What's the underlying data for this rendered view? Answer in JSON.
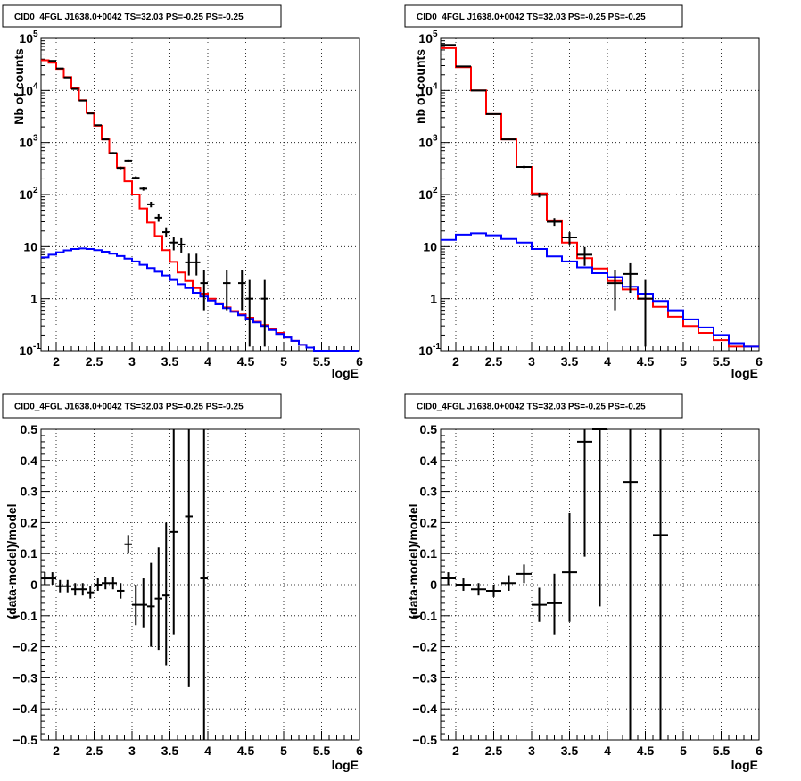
{
  "chart_data": [
    {
      "type": "step-histogram",
      "title": "CID0_4FGL J1638.0+0042 TS=32.03 PS=-0.25 PS=-0.25",
      "xlabel": "logE",
      "ylabel": "Nb of counts",
      "xlim": [
        1.8,
        6.0
      ],
      "ylim": [
        0.1,
        100000
      ],
      "yscale": "log",
      "grid": true,
      "xticks": [
        {
          "v": 2,
          "label": "2"
        },
        {
          "v": 2.5,
          "label": "2.5"
        },
        {
          "v": 3,
          "label": "3"
        },
        {
          "v": 3.5,
          "label": "3.5"
        },
        {
          "v": 4,
          "label": "4"
        },
        {
          "v": 4.5,
          "label": "4.5"
        },
        {
          "v": 5,
          "label": "5"
        },
        {
          "v": 5.5,
          "label": "5.5"
        },
        {
          "v": 6,
          "label": "6"
        }
      ],
      "yticks": [
        {
          "v": 0.1,
          "label": "10",
          "sup": "-1"
        },
        {
          "v": 1,
          "label": "1",
          "sup": ""
        },
        {
          "v": 10,
          "label": "10",
          "sup": ""
        },
        {
          "v": 100,
          "label": "10",
          "sup": "2"
        },
        {
          "v": 1000,
          "label": "10",
          "sup": "3"
        },
        {
          "v": 10000,
          "label": "10",
          "sup": "4"
        },
        {
          "v": 100000,
          "label": "10",
          "sup": "5"
        }
      ],
      "bin_edges": [
        1.8,
        1.9,
        2.0,
        2.1,
        2.2,
        2.3,
        2.4,
        2.5,
        2.6,
        2.7,
        2.8,
        2.9,
        3.0,
        3.1,
        3.2,
        3.3,
        3.4,
        3.5,
        3.6,
        3.7,
        3.8,
        3.9,
        4.0,
        4.1,
        4.2,
        4.3,
        4.4,
        4.5,
        4.6,
        4.7,
        4.8,
        4.9,
        5.0,
        5.1,
        5.2,
        5.3,
        5.4,
        5.5,
        5.6,
        5.7,
        5.8,
        5.9,
        6.0
      ],
      "series": [
        {
          "role": "total_model",
          "color": "#ff0000",
          "values": [
            38000,
            34000,
            26000,
            18000,
            11000,
            6500,
            3700,
            2100,
            1150,
            620,
            330,
            180,
            100,
            54,
            29,
            16,
            8.6,
            5.1,
            3.2,
            2.2,
            1.6,
            1.25,
            1.0,
            0.82,
            0.68,
            0.58,
            0.5,
            0.43,
            0.36,
            0.31,
            0.26,
            0.22,
            0.18,
            0.155,
            0.13,
            0.115,
            0.1,
            0.09,
            0.085,
            0.08,
            0.075,
            0.07
          ]
        },
        {
          "role": "source_model",
          "color": "#0000ff",
          "values": [
            6.2,
            7.0,
            7.8,
            8.5,
            9.0,
            9.2,
            9.0,
            8.6,
            8.0,
            7.3,
            6.6,
            5.9,
            5.2,
            4.5,
            3.9,
            3.3,
            2.8,
            2.3,
            1.9,
            1.6,
            1.3,
            1.1,
            0.92,
            0.78,
            0.66,
            0.56,
            0.48,
            0.41,
            0.35,
            0.3,
            0.25,
            0.21,
            0.18,
            0.155,
            0.13,
            0.115,
            0.1,
            0.09,
            0.085,
            0.08,
            0.075,
            0.07
          ]
        }
      ],
      "data_points": [
        {
          "x": 1.95,
          "y": 37000,
          "ylo": 36800,
          "yhi": 37200,
          "xerr": 0.05
        },
        {
          "x": 2.05,
          "y": 26500,
          "ylo": 26300,
          "yhi": 26700,
          "xerr": 0.05
        },
        {
          "x": 2.15,
          "y": 17800,
          "ylo": 17650,
          "yhi": 17950,
          "xerr": 0.05
        },
        {
          "x": 2.25,
          "y": 10700,
          "ylo": 10600,
          "yhi": 10800,
          "xerr": 0.05
        },
        {
          "x": 2.35,
          "y": 6400,
          "ylo": 6320,
          "yhi": 6480,
          "xerr": 0.05
        },
        {
          "x": 2.45,
          "y": 3600,
          "ylo": 3540,
          "yhi": 3660,
          "xerr": 0.05
        },
        {
          "x": 2.55,
          "y": 2150,
          "ylo": 2100,
          "yhi": 2200,
          "xerr": 0.05
        },
        {
          "x": 2.65,
          "y": 1150,
          "ylo": 1120,
          "yhi": 1180,
          "xerr": 0.05
        },
        {
          "x": 2.75,
          "y": 630,
          "ylo": 605,
          "yhi": 655,
          "xerr": 0.05
        },
        {
          "x": 2.85,
          "y": 325,
          "ylo": 307,
          "yhi": 343,
          "xerr": 0.05
        },
        {
          "x": 2.95,
          "y": 450,
          "ylo": 430,
          "yhi": 470,
          "xerr": 0.05
        },
        {
          "x": 3.05,
          "y": 210,
          "ylo": 196,
          "yhi": 224,
          "xerr": 0.05
        },
        {
          "x": 3.15,
          "y": 130,
          "ylo": 119,
          "yhi": 141,
          "xerr": 0.05
        },
        {
          "x": 3.25,
          "y": 65,
          "ylo": 57,
          "yhi": 73,
          "xerr": 0.05
        },
        {
          "x": 3.35,
          "y": 36,
          "ylo": 30,
          "yhi": 42,
          "xerr": 0.05
        },
        {
          "x": 3.45,
          "y": 19,
          "ylo": 15,
          "yhi": 23.5,
          "xerr": 0.05
        },
        {
          "x": 3.55,
          "y": 12,
          "ylo": 8.5,
          "yhi": 15.5,
          "xerr": 0.05
        },
        {
          "x": 3.65,
          "y": 11,
          "ylo": 7.7,
          "yhi": 14.5,
          "xerr": 0.05
        },
        {
          "x": 3.75,
          "y": 5,
          "ylo": 2.8,
          "yhi": 7.3,
          "xerr": 0.05
        },
        {
          "x": 3.85,
          "y": 5,
          "ylo": 2.8,
          "yhi": 7.3,
          "xerr": 0.05
        },
        {
          "x": 3.95,
          "y": 2,
          "ylo": 0.6,
          "yhi": 3.5,
          "xerr": 0.05
        },
        {
          "x": 4.25,
          "y": 2,
          "ylo": 0.6,
          "yhi": 3.5,
          "xerr": 0.05
        },
        {
          "x": 4.45,
          "y": 2,
          "ylo": 0.6,
          "yhi": 3.5,
          "xerr": 0.05
        },
        {
          "x": 4.55,
          "y": 1,
          "ylo": 0.12,
          "yhi": 2.3,
          "xerr": 0.05
        },
        {
          "x": 4.75,
          "y": 1,
          "ylo": 0.12,
          "yhi": 2.3,
          "xerr": 0.05
        }
      ]
    },
    {
      "type": "step-histogram",
      "title": "CID0_4FGL J1638.0+0042 TS=32.03 PS=-0.25 PS=-0.25",
      "xlabel": "logE",
      "ylabel": "nb of counts",
      "xlim": [
        1.8,
        6.0
      ],
      "ylim": [
        0.1,
        100000
      ],
      "yscale": "log",
      "grid": true,
      "xticks": [
        {
          "v": 2,
          "label": "2"
        },
        {
          "v": 2.5,
          "label": "2.5"
        },
        {
          "v": 3,
          "label": "3"
        },
        {
          "v": 3.5,
          "label": "3.5"
        },
        {
          "v": 4,
          "label": "4"
        },
        {
          "v": 4.5,
          "label": "4.5"
        },
        {
          "v": 5,
          "label": "5"
        },
        {
          "v": 5.5,
          "label": "5.5"
        },
        {
          "v": 6,
          "label": "6"
        }
      ],
      "yticks": [
        {
          "v": 0.1,
          "label": "10",
          "sup": "-1"
        },
        {
          "v": 1,
          "label": "1",
          "sup": ""
        },
        {
          "v": 10,
          "label": "10",
          "sup": ""
        },
        {
          "v": 100,
          "label": "10",
          "sup": "2"
        },
        {
          "v": 1000,
          "label": "10",
          "sup": "3"
        },
        {
          "v": 10000,
          "label": "10",
          "sup": "4"
        },
        {
          "v": 100000,
          "label": "10",
          "sup": "5"
        }
      ],
      "bin_edges": [
        1.8,
        2.0,
        2.2,
        2.4,
        2.6,
        2.8,
        3.0,
        3.2,
        3.4,
        3.6,
        3.8,
        4.0,
        4.2,
        4.4,
        4.6,
        4.8,
        5.0,
        5.2,
        5.4,
        5.6,
        5.8,
        6.0
      ],
      "series": [
        {
          "role": "total_model",
          "color": "#ff0000",
          "values": [
            65000,
            28000,
            10000,
            3500,
            1150,
            340,
            105,
            32,
            12,
            6,
            3.8,
            2.2,
            1.5,
            1.0,
            0.7,
            0.45,
            0.3,
            0.22,
            0.16,
            0.12,
            0.12
          ]
        },
        {
          "role": "source_model",
          "color": "#0000ff",
          "values": [
            13.5,
            17,
            18,
            16.5,
            14,
            12,
            9,
            6.5,
            5.2,
            4,
            3.1,
            2.6,
            1.7,
            1.25,
            0.9,
            0.6,
            0.4,
            0.28,
            0.2,
            0.14,
            0.12
          ]
        }
      ],
      "data_points": [
        {
          "x": 1.9,
          "y": 75000,
          "ylo": 74700,
          "yhi": 75300,
          "xerr": 0.1
        },
        {
          "x": 2.1,
          "y": 29000,
          "ylo": 28800,
          "yhi": 29200,
          "xerr": 0.1
        },
        {
          "x": 2.3,
          "y": 10000,
          "ylo": 9900,
          "yhi": 10100,
          "xerr": 0.1
        },
        {
          "x": 2.5,
          "y": 3500,
          "ylo": 3440,
          "yhi": 3560,
          "xerr": 0.1
        },
        {
          "x": 2.7,
          "y": 1150,
          "ylo": 1115,
          "yhi": 1185,
          "xerr": 0.1
        },
        {
          "x": 2.9,
          "y": 340,
          "ylo": 322,
          "yhi": 358,
          "xerr": 0.1
        },
        {
          "x": 3.1,
          "y": 98,
          "ylo": 88,
          "yhi": 108,
          "xerr": 0.1
        },
        {
          "x": 3.3,
          "y": 30,
          "ylo": 25,
          "yhi": 35.5,
          "xerr": 0.1
        },
        {
          "x": 3.5,
          "y": 15,
          "ylo": 11,
          "yhi": 19,
          "xerr": 0.1
        },
        {
          "x": 3.7,
          "y": 7,
          "ylo": 4.3,
          "yhi": 9.8,
          "xerr": 0.1
        },
        {
          "x": 4.1,
          "y": 2,
          "ylo": 0.6,
          "yhi": 3.5,
          "xerr": 0.1
        },
        {
          "x": 4.3,
          "y": 3,
          "ylo": 1.3,
          "yhi": 4.8,
          "xerr": 0.1
        },
        {
          "x": 4.5,
          "y": 1,
          "ylo": 0.12,
          "yhi": 2.3,
          "xerr": 0.1
        }
      ]
    },
    {
      "type": "scatter-errorbar",
      "title": "CID0_4FGL J1638.0+0042 TS=32.03 PS=-0.25 PS=-0.25",
      "xlabel": "logE",
      "ylabel": "(data-model)/model",
      "xlim": [
        1.8,
        6.0
      ],
      "ylim": [
        -0.5,
        0.5
      ],
      "yscale": "linear",
      "grid": true,
      "xticks": [
        {
          "v": 2,
          "label": "2"
        },
        {
          "v": 2.5,
          "label": "2.5"
        },
        {
          "v": 3,
          "label": "3"
        },
        {
          "v": 3.5,
          "label": "3.5"
        },
        {
          "v": 4,
          "label": "4"
        },
        {
          "v": 4.5,
          "label": "4.5"
        },
        {
          "v": 5,
          "label": "5"
        },
        {
          "v": 5.5,
          "label": "5.5"
        },
        {
          "v": 6,
          "label": "6"
        }
      ],
      "yticks": [
        {
          "v": -0.5,
          "label": "−0.5"
        },
        {
          "v": -0.4,
          "label": "−0.4"
        },
        {
          "v": -0.3,
          "label": "−0.3"
        },
        {
          "v": -0.2,
          "label": "−0.2"
        },
        {
          "v": -0.1,
          "label": "−0.1"
        },
        {
          "v": 0,
          "label": "0"
        },
        {
          "v": 0.1,
          "label": "0.1"
        },
        {
          "v": 0.2,
          "label": "0.2"
        },
        {
          "v": 0.3,
          "label": "0.3"
        },
        {
          "v": 0.4,
          "label": "0.4"
        },
        {
          "v": 0.5,
          "label": "0.5"
        }
      ],
      "data_points": [
        {
          "x": 1.85,
          "y": 0.02,
          "ylo": 0.0,
          "yhi": 0.04,
          "xerr": 0.05
        },
        {
          "x": 1.95,
          "y": 0.02,
          "ylo": 0.0,
          "yhi": 0.04,
          "xerr": 0.05
        },
        {
          "x": 2.05,
          "y": -0.005,
          "ylo": -0.025,
          "yhi": 0.015,
          "xerr": 0.05
        },
        {
          "x": 2.15,
          "y": -0.005,
          "ylo": -0.025,
          "yhi": 0.015,
          "xerr": 0.05
        },
        {
          "x": 2.25,
          "y": -0.015,
          "ylo": -0.035,
          "yhi": 0.005,
          "xerr": 0.05
        },
        {
          "x": 2.35,
          "y": -0.015,
          "ylo": -0.035,
          "yhi": 0.005,
          "xerr": 0.05
        },
        {
          "x": 2.45,
          "y": -0.025,
          "ylo": -0.045,
          "yhi": -0.005,
          "xerr": 0.05
        },
        {
          "x": 2.55,
          "y": 0.0,
          "ylo": -0.02,
          "yhi": 0.02,
          "xerr": 0.05
        },
        {
          "x": 2.65,
          "y": 0.005,
          "ylo": -0.015,
          "yhi": 0.025,
          "xerr": 0.05
        },
        {
          "x": 2.75,
          "y": 0.005,
          "ylo": -0.015,
          "yhi": 0.025,
          "xerr": 0.05
        },
        {
          "x": 2.85,
          "y": -0.02,
          "ylo": -0.045,
          "yhi": 0.005,
          "xerr": 0.05
        },
        {
          "x": 2.95,
          "y": 0.13,
          "ylo": 0.1,
          "yhi": 0.16,
          "xerr": 0.05
        },
        {
          "x": 3.05,
          "y": -0.065,
          "ylo": -0.13,
          "yhi": 0.0,
          "xerr": 0.05
        },
        {
          "x": 3.15,
          "y": -0.065,
          "ylo": -0.14,
          "yhi": 0.02,
          "xerr": 0.05
        },
        {
          "x": 3.25,
          "y": -0.07,
          "ylo": -0.2,
          "yhi": 0.07,
          "xerr": 0.05
        },
        {
          "x": 3.35,
          "y": -0.045,
          "ylo": -0.21,
          "yhi": 0.12,
          "xerr": 0.05
        },
        {
          "x": 3.45,
          "y": -0.035,
          "ylo": -0.26,
          "yhi": 0.2,
          "xerr": 0.05
        },
        {
          "x": 3.55,
          "y": 0.17,
          "ylo": -0.16,
          "yhi": 0.5,
          "xerr": 0.05
        },
        {
          "x": 3.75,
          "y": 0.22,
          "ylo": -0.33,
          "yhi": 0.5,
          "xerr": 0.05
        },
        {
          "x": 3.95,
          "y": 0.02,
          "ylo": -0.5,
          "yhi": 0.5,
          "xerr": 0.05
        }
      ]
    },
    {
      "type": "scatter-errorbar",
      "title": "CID0_4FGL J1638.0+0042 TS=32.03 PS=-0.25 PS=-0.25",
      "xlabel": "logE",
      "ylabel": "(data-model)/model",
      "xlim": [
        1.8,
        6.0
      ],
      "ylim": [
        -0.5,
        0.5
      ],
      "yscale": "linear",
      "grid": true,
      "xticks": [
        {
          "v": 2,
          "label": "2"
        },
        {
          "v": 2.5,
          "label": "2.5"
        },
        {
          "v": 3,
          "label": "3"
        },
        {
          "v": 3.5,
          "label": "3.5"
        },
        {
          "v": 4,
          "label": "4"
        },
        {
          "v": 4.5,
          "label": "4.5"
        },
        {
          "v": 5,
          "label": "5"
        },
        {
          "v": 5.5,
          "label": "5.5"
        },
        {
          "v": 6,
          "label": "6"
        }
      ],
      "yticks": [
        {
          "v": -0.5,
          "label": "−0.5"
        },
        {
          "v": -0.4,
          "label": "−0.4"
        },
        {
          "v": -0.3,
          "label": "−0.3"
        },
        {
          "v": -0.2,
          "label": "−0.2"
        },
        {
          "v": -0.1,
          "label": "−0.1"
        },
        {
          "v": 0,
          "label": "0"
        },
        {
          "v": 0.1,
          "label": "0.1"
        },
        {
          "v": 0.2,
          "label": "0.2"
        },
        {
          "v": 0.3,
          "label": "0.3"
        },
        {
          "v": 0.4,
          "label": "0.4"
        },
        {
          "v": 0.5,
          "label": "0.5"
        }
      ],
      "data_points": [
        {
          "x": 1.9,
          "y": 0.02,
          "ylo": 0.0,
          "yhi": 0.04,
          "xerr": 0.1
        },
        {
          "x": 2.1,
          "y": 0.0,
          "ylo": -0.02,
          "yhi": 0.02,
          "xerr": 0.1
        },
        {
          "x": 2.3,
          "y": -0.015,
          "ylo": -0.035,
          "yhi": 0.005,
          "xerr": 0.1
        },
        {
          "x": 2.5,
          "y": -0.02,
          "ylo": -0.04,
          "yhi": 0.0,
          "xerr": 0.1
        },
        {
          "x": 2.7,
          "y": 0.005,
          "ylo": -0.02,
          "yhi": 0.03,
          "xerr": 0.1
        },
        {
          "x": 2.9,
          "y": 0.035,
          "ylo": 0.005,
          "yhi": 0.065,
          "xerr": 0.1
        },
        {
          "x": 3.1,
          "y": -0.065,
          "ylo": -0.12,
          "yhi": -0.01,
          "xerr": 0.1
        },
        {
          "x": 3.3,
          "y": -0.06,
          "ylo": -0.16,
          "yhi": 0.035,
          "xerr": 0.1
        },
        {
          "x": 3.5,
          "y": 0.04,
          "ylo": -0.12,
          "yhi": 0.23,
          "xerr": 0.1
        },
        {
          "x": 3.7,
          "y": 0.46,
          "ylo": 0.09,
          "yhi": 0.5,
          "xerr": 0.1
        },
        {
          "x": 3.9,
          "y": 0.5,
          "ylo": -0.07,
          "yhi": 0.5,
          "xerr": 0.1
        },
        {
          "x": 4.3,
          "y": 0.33,
          "ylo": -0.5,
          "yhi": 0.5,
          "xerr": 0.1
        },
        {
          "x": 4.7,
          "y": 0.16,
          "ylo": -0.5,
          "yhi": 0.5,
          "xerr": 0.1
        }
      ]
    }
  ]
}
